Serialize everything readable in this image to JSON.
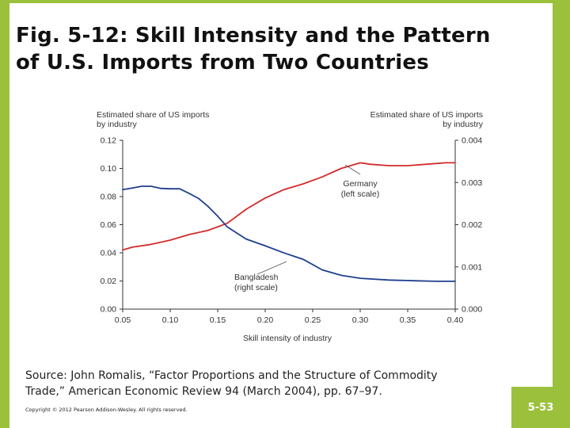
{
  "slide": {
    "title_line1": "Fig. 5-12:  Skill Intensity and the Pattern",
    "title_line2": "of U.S. Imports from Two Countries",
    "source_line1": "Source: John Romalis, “Factor Proportions and the Structure of Commodity",
    "source_line2": "Trade,” American Economic Review 94 (March 2004), pp. 67–97.",
    "copyright": "Copyright © 2012 Pearson Addison-Wesley. All rights reserved.",
    "slide_number": "5-53",
    "accent_color": "#9bc13c"
  },
  "chart_data": {
    "type": "line",
    "xlabel": "Skill intensity of industry",
    "ylabel_left_line1": "Estimated share of US imports",
    "ylabel_left_line2": "by industry",
    "ylabel_right_line1": "Estimated share of US imports",
    "ylabel_right_line2": "by industry",
    "xlim": [
      0.05,
      0.4
    ],
    "ylim_left": [
      0,
      0.12
    ],
    "ylim_right": [
      0,
      0.004
    ],
    "x_ticks": [
      "0.05",
      "0.10",
      "0.15",
      "0.20",
      "0.25",
      "0.30",
      "0.35",
      "0.40"
    ],
    "y_left_ticks": [
      "0.00",
      "0.02",
      "0.04",
      "0.06",
      "0.08",
      "0.10",
      "0.12"
    ],
    "y_right_ticks": [
      "0.000",
      "0.001",
      "0.002",
      "0.003",
      "0.004"
    ],
    "grid": false,
    "series": [
      {
        "name": "Germany",
        "annotation_line1": "Germany",
        "annotation_line2": "(left scale)",
        "axis": "left",
        "color": "#d42a2a",
        "x": [
          0.05,
          0.06,
          0.08,
          0.1,
          0.12,
          0.14,
          0.16,
          0.18,
          0.2,
          0.22,
          0.24,
          0.26,
          0.28,
          0.3,
          0.31,
          0.33,
          0.35,
          0.37,
          0.39,
          0.4
        ],
        "values": [
          0.042,
          0.044,
          0.046,
          0.049,
          0.053,
          0.056,
          0.061,
          0.071,
          0.079,
          0.085,
          0.089,
          0.094,
          0.1,
          0.104,
          0.103,
          0.102,
          0.102,
          0.103,
          0.104,
          0.104
        ]
      },
      {
        "name": "Bangladesh",
        "annotation_line1": "Bangladesh",
        "annotation_line2": "(right scale)",
        "axis": "right",
        "color": "#1f3f8f",
        "x": [
          0.05,
          0.06,
          0.07,
          0.08,
          0.09,
          0.1,
          0.11,
          0.12,
          0.13,
          0.14,
          0.15,
          0.16,
          0.18,
          0.2,
          0.22,
          0.24,
          0.26,
          0.28,
          0.3,
          0.33,
          0.36,
          0.38,
          0.4
        ],
        "values": [
          0.00283,
          0.00287,
          0.00291,
          0.00291,
          0.00286,
          0.00285,
          0.00285,
          0.00274,
          0.00262,
          0.00243,
          0.0022,
          0.00195,
          0.00166,
          0.0015,
          0.00133,
          0.00118,
          0.00093,
          0.0008,
          0.00073,
          0.00069,
          0.00067,
          0.00066,
          0.00066
        ]
      }
    ]
  }
}
